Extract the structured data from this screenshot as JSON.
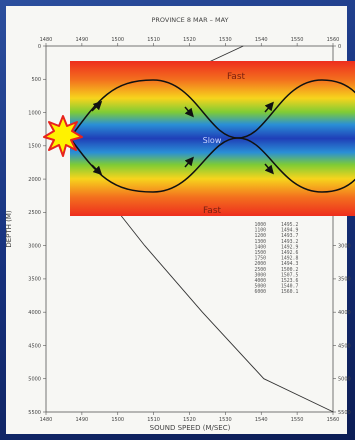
{
  "chart": {
    "title": "PROVINCE 8  MAR – MAY",
    "xlabel": "SOUND SPEED (M/SEC)",
    "ylabel": "DEPTH (M)"
  },
  "overlay": {
    "fast_top_label": "Fast",
    "slow_label": "Slow",
    "fast_bottom_label": "Fast"
  },
  "chart_data": {
    "type": "line",
    "title": "PROVINCE 8  MAR – MAY",
    "xlabel": "SOUND SPEED (M/SEC)",
    "ylabel": "DEPTH (M)",
    "xlim": [
      1480,
      1560
    ],
    "ylim": [
      5500,
      0
    ],
    "x_ticks": [
      1480,
      1490,
      1500,
      1510,
      1520,
      1530,
      1540,
      1550,
      1560
    ],
    "y_ticks": [
      0,
      500,
      1000,
      1500,
      2000,
      2500,
      3000,
      3500,
      4000,
      4500,
      5000,
      5500
    ],
    "grid": false,
    "series": [
      {
        "depth": [
          0,
          1000,
          1100,
          1200,
          1300,
          1400,
          1500,
          1750,
          2000,
          2500,
          3000,
          4000,
          5000,
          6000
        ],
        "speed": [
          1535.0,
          1495.2,
          1494.9,
          1493.7,
          1493.2,
          1492.9,
          1492.6,
          1492.8,
          1494.3,
          1500.2,
          1507.5,
          1523.6,
          1540.7,
          1560.1
        ]
      }
    ],
    "table": {
      "rows": [
        [
          "1000",
          "1495.2"
        ],
        [
          "1100",
          "1494.9"
        ],
        [
          "1200",
          "1493.7"
        ],
        [
          "1300",
          "1493.2"
        ],
        [
          "1400",
          "1492.9"
        ],
        [
          "1500",
          "1492.6"
        ],
        [
          "1750",
          "1492.8"
        ],
        [
          "2000",
          "1494.3"
        ],
        [
          "2500",
          "1500.2"
        ],
        [
          "3000",
          "1507.5"
        ],
        [
          "4000",
          "1523.6"
        ],
        [
          "5000",
          "1540.7"
        ],
        [
          "6000",
          "1560.1"
        ]
      ]
    }
  }
}
